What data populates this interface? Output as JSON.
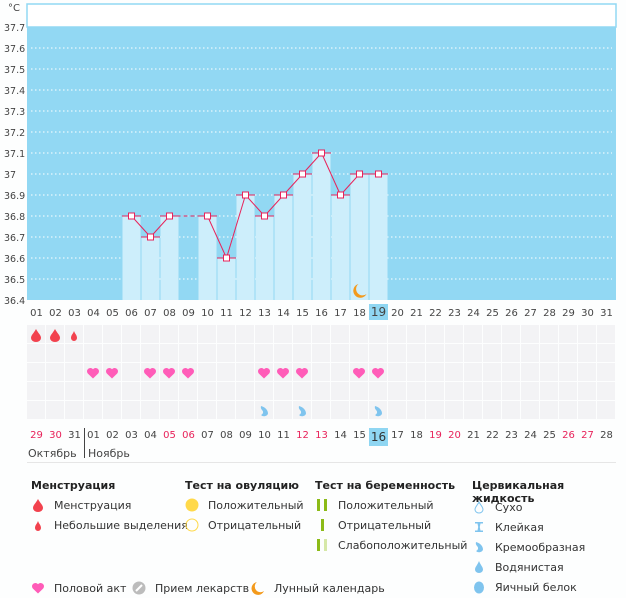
{
  "chart_data": {
    "type": "bar",
    "unit_label": "°C",
    "y_ticks": [
      "37.7",
      "37.6",
      "37.5",
      "37.4",
      "37.3",
      "37.2",
      "37.1",
      "37",
      "36.9",
      "36.8",
      "36.7",
      "36.6",
      "36.5",
      "36.4"
    ],
    "ylim": [
      36.4,
      37.7
    ],
    "grid": true,
    "x_ticks": [
      "01",
      "02",
      "03",
      "04",
      "05",
      "06",
      "07",
      "08",
      "09",
      "10",
      "11",
      "12",
      "13",
      "14",
      "15",
      "16",
      "17",
      "18",
      "19",
      "20",
      "21",
      "22",
      "23",
      "24",
      "25",
      "26",
      "27",
      "28",
      "29",
      "30",
      "31"
    ],
    "highlighted_cycle_day": "19",
    "series": [
      {
        "name": "Базальная температура",
        "days": [
          "06",
          "07",
          "08",
          "10",
          "11",
          "12",
          "13",
          "14",
          "15",
          "16",
          "17",
          "18",
          "19"
        ],
        "values": [
          36.8,
          36.7,
          36.8,
          36.8,
          36.6,
          36.9,
          36.8,
          36.9,
          37.0,
          37.1,
          36.9,
          37.0,
          37.0
        ],
        "dashed_gap": [
          "08",
          "10"
        ]
      }
    ],
    "moon_marker_day": "18"
  },
  "calendar": {
    "days": [
      {
        "label": "29",
        "red": true
      },
      {
        "label": "30",
        "red": true
      },
      {
        "label": "31",
        "red": false
      },
      {
        "label": "01",
        "red": false
      },
      {
        "label": "02",
        "red": false
      },
      {
        "label": "03",
        "red": false
      },
      {
        "label": "04",
        "red": false
      },
      {
        "label": "05",
        "red": true
      },
      {
        "label": "06",
        "red": true
      },
      {
        "label": "07",
        "red": false
      },
      {
        "label": "08",
        "red": false
      },
      {
        "label": "09",
        "red": false
      },
      {
        "label": "10",
        "red": false
      },
      {
        "label": "11",
        "red": false
      },
      {
        "label": "12",
        "red": true
      },
      {
        "label": "13",
        "red": true
      },
      {
        "label": "14",
        "red": false
      },
      {
        "label": "15",
        "red": false
      },
      {
        "label": "16",
        "red": false,
        "today": true
      },
      {
        "label": "17",
        "red": false
      },
      {
        "label": "18",
        "red": false
      },
      {
        "label": "19",
        "red": true
      },
      {
        "label": "20",
        "red": true
      },
      {
        "label": "21",
        "red": false
      },
      {
        "label": "22",
        "red": false
      },
      {
        "label": "23",
        "red": false
      },
      {
        "label": "24",
        "red": false
      },
      {
        "label": "25",
        "red": false
      },
      {
        "label": "26",
        "red": true
      },
      {
        "label": "27",
        "red": true
      },
      {
        "label": "28",
        "red": false
      }
    ],
    "months": {
      "first": "Октябрь",
      "second": "Ноябрь"
    },
    "rows": {
      "menstruation": {
        "full": [
          0,
          1
        ],
        "light": [
          2
        ]
      },
      "ovulation_test": [],
      "intercourse": [
        3,
        4,
        6,
        7,
        8,
        12,
        13,
        14,
        17,
        18
      ],
      "pregnancy_test": [],
      "cervical_creamy": [
        12,
        14,
        18
      ]
    }
  },
  "legend": {
    "menstruation": {
      "title": "Менструация",
      "items": [
        "Менструация",
        "Небольшие выделения"
      ]
    },
    "ovulation": {
      "title": "Тест на овуляцию",
      "items": [
        "Положительный",
        "Отрицательный"
      ]
    },
    "pregnancy": {
      "title": "Тест на беременность",
      "items": [
        "Положительный",
        "Отрицательный",
        "Слабоположительный"
      ]
    },
    "cervical": {
      "title": "Цервикальная жидкость",
      "items": [
        "Сухо",
        "Клейкая",
        "Кремообразная",
        "Водянистая",
        "Яичный белок"
      ]
    },
    "other": [
      "Половой акт",
      "Прием лекарств",
      "Лунный календарь"
    ]
  },
  "colors": {
    "plot_bg": "#92d8f3",
    "bar_fill": "#cdeefb",
    "line": "#e8225a",
    "menstruation": "#f2424e",
    "heart": "#ff5cb8",
    "cervical": "#7fc4ee",
    "ovulation_pos": "#ffd94a",
    "pregnancy_green": "#8cbb18",
    "moon": "#f39a1c",
    "today": "#8fd6f2"
  }
}
